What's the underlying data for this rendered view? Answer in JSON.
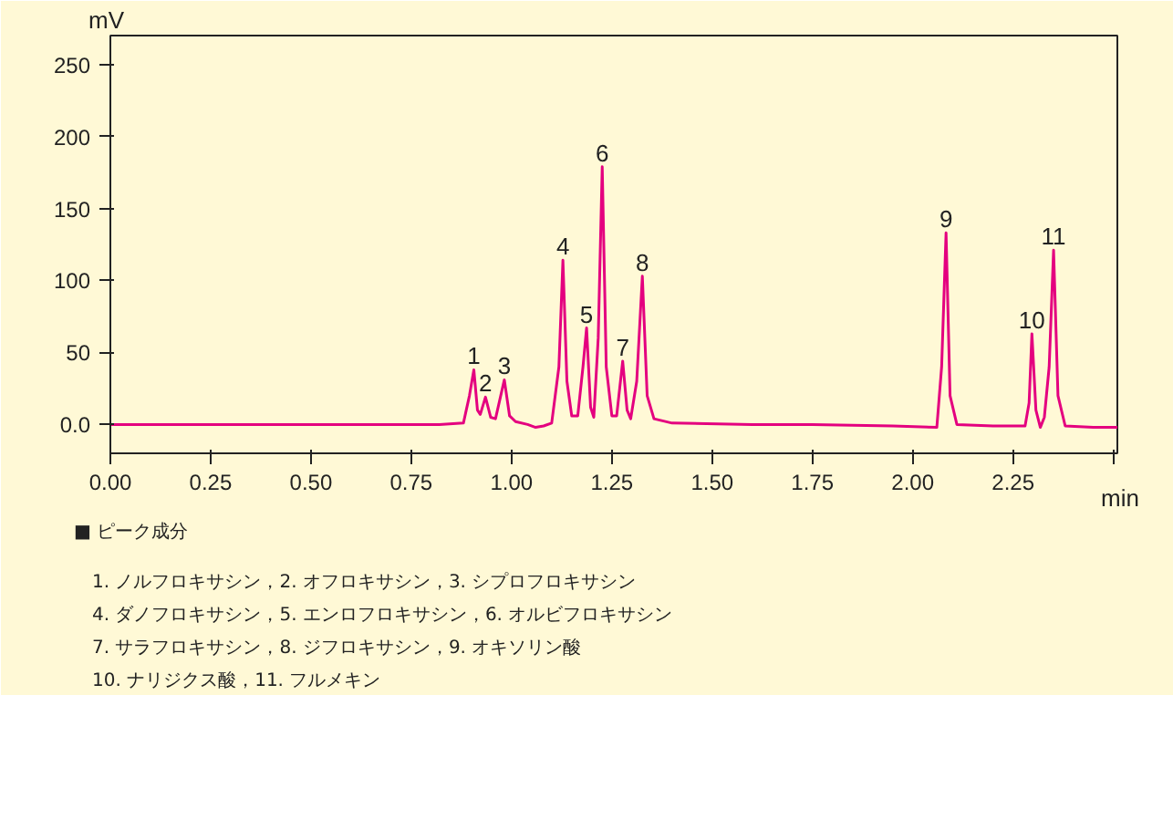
{
  "chart_data": {
    "type": "line",
    "xlabel": "min",
    "ylabel": "mV",
    "x": [
      0,
      0.82,
      0.88,
      0.895,
      0.906,
      0.915,
      0.922,
      0.935,
      0.948,
      0.96,
      0.982,
      0.995,
      1.01,
      1.04,
      1.06,
      1.08,
      1.1,
      1.118,
      1.128,
      1.138,
      1.15,
      1.165,
      1.178,
      1.187,
      1.197,
      1.205,
      1.216,
      1.226,
      1.236,
      1.25,
      1.262,
      1.277,
      1.288,
      1.297,
      1.312,
      1.326,
      1.338,
      1.355,
      1.4,
      1.6,
      1.75,
      1.95,
      2.06,
      2.072,
      2.083,
      2.093,
      2.11,
      2.2,
      2.28,
      2.29,
      2.297,
      2.307,
      2.318,
      2.328,
      2.34,
      2.351,
      2.362,
      2.38,
      2.45,
      2.51
    ],
    "series": [
      {
        "color": "#e4007f",
        "values": [
          0,
          0,
          1,
          20,
          38,
          10,
          7,
          19,
          5,
          4,
          31,
          6,
          2,
          0,
          -2,
          -1,
          1,
          40,
          114,
          30,
          6,
          6,
          40,
          67,
          12,
          5,
          60,
          179,
          40,
          6,
          6,
          44,
          10,
          4,
          30,
          103,
          20,
          4,
          1,
          0,
          0,
          -1,
          -2,
          40,
          133,
          20,
          0,
          -1,
          -1,
          15,
          63,
          10,
          -2,
          5,
          40,
          121,
          20,
          -1,
          -2,
          -2
        ]
      }
    ],
    "xlim": [
      0,
      2.51
    ],
    "ylim": [
      -20,
      270
    ],
    "xticks": [
      {
        "value": 0,
        "label": "0.00"
      },
      0.25,
      {
        "value": 0.5,
        "label": "0.50"
      },
      0.75,
      {
        "value": 1,
        "label": "1.00"
      },
      1.25,
      {
        "value": 1.5,
        "label": "1.50"
      },
      1.75,
      {
        "value": 2,
        "label": "2.00"
      },
      2.25,
      {
        "value": 2.5,
        "label": null
      }
    ],
    "yticks": [
      {
        "value": 0,
        "label": "0.0"
      },
      50,
      100,
      150,
      200,
      250
    ],
    "grid": false,
    "marker": "none",
    "line_style": "solid",
    "annotations": [
      {
        "text": "1",
        "x": 0.906,
        "y": 38
      },
      {
        "text": "2",
        "x": 0.935,
        "y": 19
      },
      {
        "text": "3",
        "x": 0.982,
        "y": 31
      },
      {
        "text": "4",
        "x": 1.128,
        "y": 114
      },
      {
        "text": "5",
        "x": 1.187,
        "y": 67
      },
      {
        "text": "6",
        "x": 1.226,
        "y": 179
      },
      {
        "text": "7",
        "x": 1.277,
        "y": 44
      },
      {
        "text": "8",
        "x": 1.326,
        "y": 103
      },
      {
        "text": "9",
        "x": 2.083,
        "y": 133
      },
      {
        "text": "10",
        "x": 2.297,
        "y": 63
      },
      {
        "text": "11",
        "x": 2.351,
        "y": 121
      },
      "■ ピーク成分",
      "1. ノルフロキサシン，2. オフロキサシン，3. シプロフロキサシン",
      "4. ダノフロキサシン，5. エンロフロキサシン，6. オルビフロキサシン",
      "7. サラフロキサシン，8. ジフロキサシン，9. オキソリン酸",
      "10. ナリジクス酸，11. フルメキン"
    ]
  }
}
